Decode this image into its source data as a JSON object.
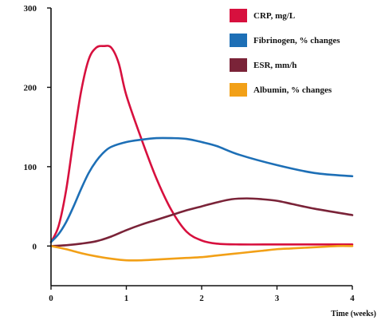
{
  "chart_data": {
    "type": "line",
    "title": "",
    "xlabel": "Time (weeks)",
    "ylabel": "",
    "xlim": [
      0,
      4
    ],
    "ylim": [
      -50,
      300
    ],
    "x_ticks": [
      "0",
      "1",
      "2",
      "3",
      "4"
    ],
    "y_ticks": [
      "300",
      "200",
      "100",
      "0"
    ],
    "grid": false,
    "legend_position": "top-right",
    "series": [
      {
        "name": "CRP, mg/L",
        "color": "#d7103e",
        "x": [
          0,
          0.1,
          0.2,
          0.3,
          0.4,
          0.5,
          0.6,
          0.7,
          0.8,
          0.9,
          1.0,
          1.2,
          1.4,
          1.6,
          1.8,
          2.0,
          2.2,
          2.5,
          3.0,
          3.5,
          4.0
        ],
        "y": [
          5,
          25,
          70,
          135,
          195,
          235,
          250,
          252,
          250,
          230,
          190,
          135,
          85,
          45,
          18,
          7,
          3,
          2,
          2,
          2,
          2
        ]
      },
      {
        "name": "Fibrinogen, % changes",
        "color": "#1d6fb6",
        "x": [
          0,
          0.1,
          0.2,
          0.3,
          0.4,
          0.5,
          0.6,
          0.7,
          0.8,
          1.0,
          1.2,
          1.4,
          1.6,
          1.8,
          2.0,
          2.2,
          2.5,
          3.0,
          3.5,
          4.0
        ],
        "y": [
          5,
          15,
          30,
          50,
          72,
          92,
          107,
          118,
          125,
          131,
          134,
          136,
          136,
          135,
          131,
          126,
          115,
          102,
          92,
          88
        ]
      },
      {
        "name": "ESR, mm/h",
        "color": "#7a2338",
        "x": [
          0,
          0.2,
          0.4,
          0.6,
          0.8,
          1.0,
          1.2,
          1.4,
          1.6,
          1.8,
          2.0,
          2.2,
          2.4,
          2.6,
          2.8,
          3.0,
          3.2,
          3.5,
          4.0
        ],
        "y": [
          0,
          1,
          3,
          6,
          12,
          20,
          27,
          33,
          39,
          45,
          50,
          55,
          59,
          60,
          59,
          57,
          53,
          47,
          39
        ]
      },
      {
        "name": "Albumin, % changes",
        "color": "#f2a017",
        "x": [
          0,
          0.2,
          0.4,
          0.6,
          0.8,
          1.0,
          1.2,
          1.4,
          1.6,
          1.8,
          2.0,
          2.2,
          2.4,
          2.6,
          2.8,
          3.0,
          3.2,
          3.4,
          3.6,
          3.8,
          4.0
        ],
        "y": [
          0,
          -4,
          -9,
          -13,
          -16,
          -18,
          -18,
          -17,
          -16,
          -15,
          -14,
          -12,
          -10,
          -8,
          -6,
          -4,
          -3,
          -2,
          -1,
          0,
          0
        ]
      }
    ]
  }
}
